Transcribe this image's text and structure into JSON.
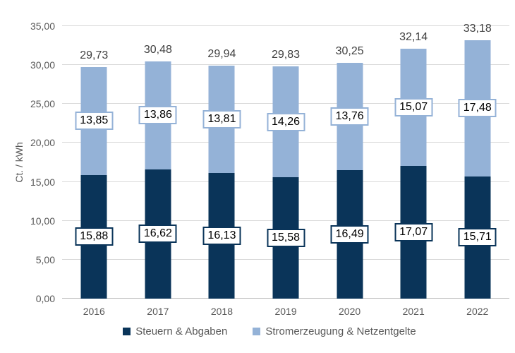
{
  "chart_data": {
    "type": "bar",
    "stacked": true,
    "orientation": "vertical",
    "title": "",
    "xlabel": "",
    "ylabel": "Ct. / kWh",
    "categories": [
      "2016",
      "2017",
      "2018",
      "2019",
      "2020",
      "2021",
      "2022"
    ],
    "series": [
      {
        "name": "Steuern & Abgaben",
        "color": "#0a3459",
        "values": [
          15.88,
          16.62,
          16.13,
          15.58,
          16.49,
          17.07,
          15.71
        ],
        "value_labels": [
          "15,88",
          "16,62",
          "16,13",
          "15,58",
          "16,49",
          "17,07",
          "15,71"
        ]
      },
      {
        "name": "Stromerzeugung & Netzentgelte",
        "color": "#94b2d7",
        "values": [
          13.85,
          13.86,
          13.81,
          14.26,
          13.76,
          15.07,
          17.48
        ],
        "value_labels": [
          "13,85",
          "13,86",
          "13,81",
          "14,26",
          "13,76",
          "15,07",
          "17,48"
        ]
      }
    ],
    "totals": [
      29.73,
      30.48,
      29.94,
      29.83,
      30.25,
      32.14,
      33.18
    ],
    "total_labels": [
      "29,73",
      "30,48",
      "29,94",
      "29,83",
      "30,25",
      "32,14",
      "33,18"
    ],
    "ylim": [
      0,
      35
    ],
    "ytick_step": 5,
    "ytick_labels": [
      "0,00",
      "5,00",
      "10,00",
      "15,00",
      "20,00",
      "25,00",
      "30,00",
      "35,00"
    ],
    "grid": true,
    "legend_position": "bottom"
  },
  "colors": {
    "series_dark": "#0a3459",
    "series_light": "#94b2d7",
    "gridline": "#d9d9d9",
    "axis_line": "#bfbfbf",
    "tick_text": "#595959",
    "total_text": "#404040",
    "label_text": "#000000",
    "background": "#ffffff"
  }
}
